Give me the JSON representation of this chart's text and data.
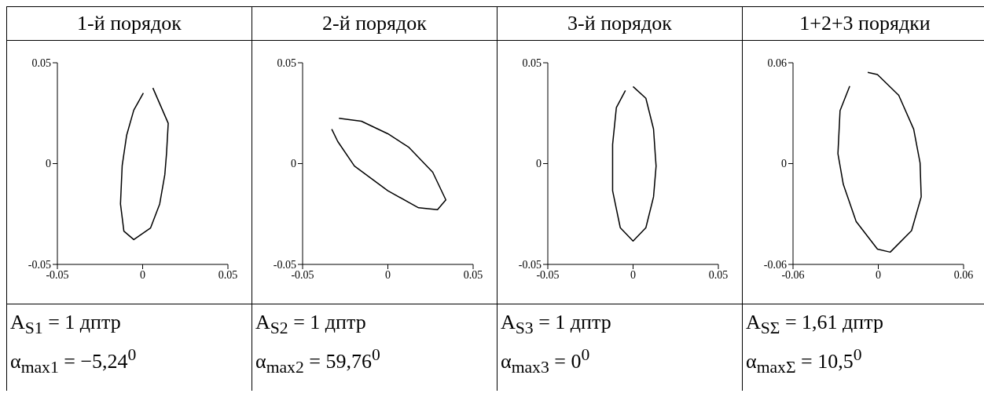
{
  "chart_data": [
    {
      "type": "line",
      "title": "1-й порядок",
      "color": "#000000",
      "marker": "none",
      "xlim": [
        -0.05,
        0.05
      ],
      "ylim": [
        -0.05,
        0.05
      ],
      "xticks": [
        -0.05,
        0,
        0.05
      ],
      "yticks": [
        -0.05,
        0,
        0.05
      ],
      "x": [
        0.006,
        0.015,
        0.014,
        0.013,
        0.01,
        0.0046,
        -0.0052,
        -0.011,
        -0.013,
        -0.012,
        -0.0094,
        -0.0052,
        0.0004
      ],
      "values": [
        0.0375,
        0.02,
        0.005,
        -0.0055,
        -0.02,
        -0.032,
        -0.0377,
        -0.0335,
        -0.02,
        -0.001,
        0.014,
        0.0265,
        0.035
      ],
      "annotations": [
        "A$_{S1}$ = 1 дптр",
        "α$_{max1}$ = −5,24$^{0}$"
      ]
    },
    {
      "type": "line",
      "title": "2-й порядок",
      "color": "#000000",
      "marker": "none",
      "xlim": [
        -0.05,
        0.05
      ],
      "ylim": [
        -0.05,
        0.05
      ],
      "xticks": [
        -0.05,
        0,
        0.05
      ],
      "yticks": [
        -0.05,
        0,
        0.05
      ],
      "x": [
        -0.0287,
        -0.0155,
        0,
        0.0124,
        0.0263,
        0.034,
        0.0291,
        0.018,
        0,
        -0.0196,
        -0.0294,
        -0.0329
      ],
      "values": [
        0.0225,
        0.021,
        0.0148,
        0.008,
        -0.0043,
        -0.018,
        -0.0229,
        -0.0219,
        -0.0135,
        -0.0012,
        0.011,
        0.0171
      ],
      "annotations": [
        "A$_{S2}$ = 1 дптр",
        "α$_{max2}$ = 59,76$^{0}$"
      ]
    },
    {
      "type": "line",
      "title": "3-й порядок",
      "color": "#000000",
      "marker": "none",
      "xlim": [
        -0.05,
        0.05
      ],
      "ylim": [
        -0.05,
        0.05
      ],
      "xticks": [
        -0.05,
        0,
        0.05
      ],
      "yticks": [
        -0.05,
        0,
        0.05
      ],
      "x": [
        0,
        0.0075,
        0.012,
        0.0131,
        0.0135,
        0.012,
        0.0075,
        0,
        -0.0075,
        -0.012,
        -0.012,
        -0.0098,
        -0.0045
      ],
      "values": [
        0.0382,
        0.0324,
        0.0171,
        0.0034,
        -0.0012,
        -0.0165,
        -0.0318,
        -0.0384,
        -0.0318,
        -0.0135,
        0.0095,
        0.0278,
        0.0362
      ],
      "annotations": [
        "A$_{S3}$ = 1 дптр",
        "α$_{max3}$ = 0$^{0}$"
      ]
    },
    {
      "type": "line",
      "title": "1+2+3 порядки",
      "color": "#000000",
      "marker": "none",
      "xlim": [
        -0.06,
        0.06
      ],
      "ylim": [
        -0.06,
        0.06
      ],
      "xticks": [
        -0.06,
        0,
        0.06
      ],
      "yticks": [
        -0.06,
        0,
        0.06
      ],
      "x": [
        -0.0074,
        -0.0006,
        0.0144,
        0.0249,
        0.0294,
        0.0302,
        0.0234,
        0.0084,
        -0.0006,
        -0.0156,
        -0.0246,
        -0.0284,
        -0.0269,
        -0.0201
      ],
      "values": [
        0.0543,
        0.053,
        0.0406,
        0.0205,
        0.0004,
        -0.0198,
        -0.0399,
        -0.0527,
        -0.0509,
        -0.0344,
        -0.0124,
        0.0059,
        0.0315,
        0.0461
      ],
      "annotations": [
        "A$_{SΣ}$ = 1,61 дптр",
        "α$_{maxΣ}$ = 10,5$^{0}$"
      ]
    }
  ]
}
